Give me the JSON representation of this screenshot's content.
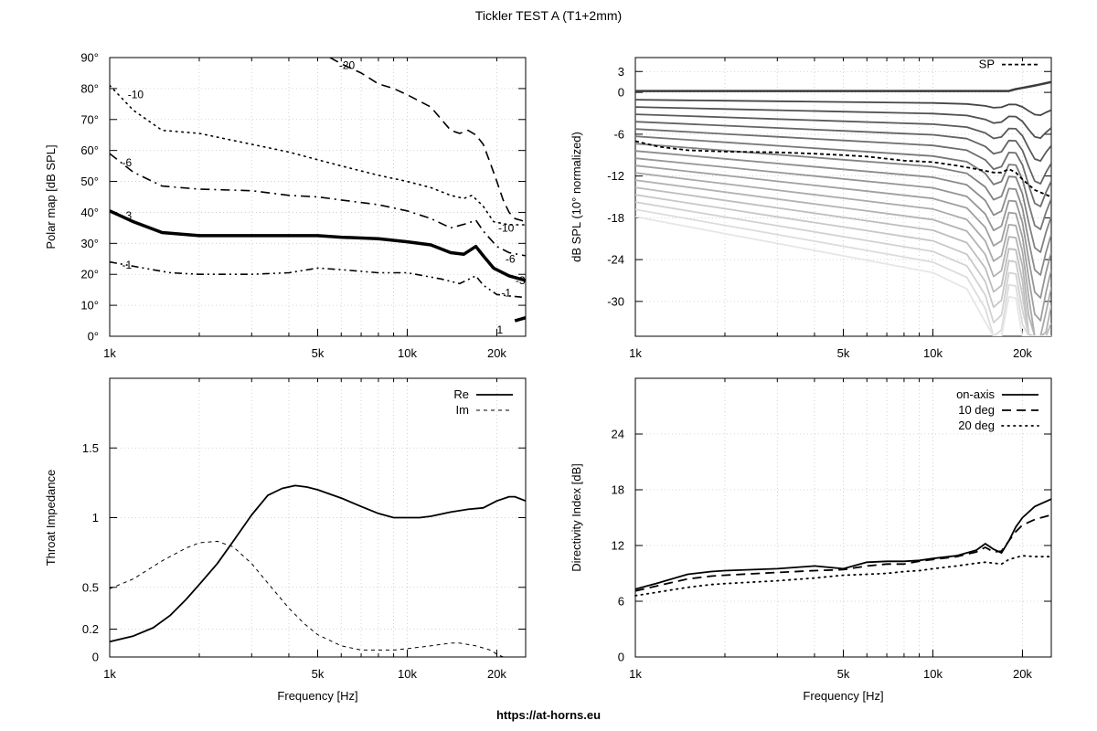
{
  "title": "Tickler TEST A (T1+2mm)",
  "footer_url": "https://at-horns.eu",
  "chart_data": [
    {
      "type": "line",
      "id": "polar",
      "xlabel": "",
      "ylabel": "Polar map [dB SPL]",
      "xscale": "log",
      "xlim": [
        1000,
        25000
      ],
      "ylim": [
        0,
        90
      ],
      "grid": true,
      "xticks": [
        {
          "v": 1000,
          "t": "1k"
        },
        {
          "v": 5000,
          "t": "5k"
        },
        {
          "v": 10000,
          "t": "10k"
        },
        {
          "v": 20000,
          "t": "20k"
        }
      ],
      "yticks": [
        {
          "v": 0,
          "t": "0°"
        },
        {
          "v": 10,
          "t": "10°"
        },
        {
          "v": 20,
          "t": "20°"
        },
        {
          "v": 30,
          "t": "30°"
        },
        {
          "v": 40,
          "t": "40°"
        },
        {
          "v": 50,
          "t": "50°"
        },
        {
          "v": 60,
          "t": "60°"
        },
        {
          "v": 70,
          "t": "70°"
        },
        {
          "v": 80,
          "t": "80°"
        },
        {
          "v": 90,
          "t": "90°"
        }
      ],
      "series": [
        {
          "name": "-1",
          "style": "dashdotdot",
          "width": 1.6,
          "label_x": 1100,
          "label_y": 23,
          "x": [
            1000,
            1300,
            1600,
            2000,
            3000,
            4000,
            5000,
            6000,
            8000,
            10000,
            13000,
            15000,
            17000,
            18000,
            20000,
            22000,
            25000
          ],
          "y": [
            24,
            22,
            20.5,
            20,
            20,
            20.5,
            22,
            21.5,
            20.5,
            20.5,
            18.5,
            17,
            19.5,
            16.5,
            13.5,
            13,
            12.5
          ]
        },
        {
          "name": "-3",
          "style": "solid",
          "width": 3.5,
          "label_x": 1100,
          "label_y": 39,
          "x": [
            1000,
            1200,
            1500,
            2000,
            3000,
            4000,
            5000,
            6000,
            8000,
            10000,
            12000,
            14000,
            15500,
            17000,
            18000,
            19500,
            22000,
            25000
          ],
          "y": [
            40.5,
            37,
            33.5,
            32.5,
            32.5,
            32.5,
            32.5,
            32,
            31.5,
            30.5,
            29.5,
            27,
            26.5,
            29,
            26,
            22,
            19.5,
            18
          ]
        },
        {
          "name": "-6",
          "style": "dashdot",
          "width": 1.6,
          "label_x": 1100,
          "label_y": 56,
          "x": [
            1000,
            1200,
            1500,
            2000,
            3000,
            4000,
            5000,
            6000,
            8000,
            10000,
            12000,
            14000,
            16000,
            17000,
            18000,
            20000,
            22000,
            25000
          ],
          "y": [
            59,
            53,
            48.5,
            47.5,
            47,
            45.5,
            45,
            44,
            42.5,
            40.5,
            38,
            35,
            36.5,
            37.5,
            34,
            29,
            27,
            26
          ]
        },
        {
          "name": "-10",
          "style": "dotted",
          "width": 1.6,
          "label_x": 1150,
          "label_y": 78,
          "x": [
            1000,
            1200,
            1500,
            2000,
            3000,
            4000,
            5000,
            6000,
            8000,
            10000,
            12000,
            14000,
            15500,
            16500,
            18000,
            19500,
            22000,
            25000
          ],
          "y": [
            81,
            73,
            66.5,
            65.5,
            62,
            59.5,
            57,
            55,
            52,
            50,
            48,
            45.5,
            44.5,
            45.5,
            42,
            37,
            36,
            36
          ]
        },
        {
          "name": "-20",
          "style": "longdash",
          "width": 1.6,
          "label_x": 5900,
          "label_y": 87.5,
          "x": [
            5500,
            6000,
            7000,
            8000,
            9000,
            10000,
            12000,
            14000,
            15000,
            16000,
            17000,
            18000,
            19000,
            20000,
            21000,
            22000,
            23000,
            25000
          ],
          "y": [
            91,
            88,
            85,
            81.5,
            80,
            78,
            74,
            66.5,
            65.5,
            66.5,
            65,
            62,
            56,
            50,
            44,
            40,
            38,
            37
          ]
        },
        {
          "name": "1",
          "style": "solid",
          "width": 3.5,
          "label_x": 20000,
          "label_y": 2,
          "x": [
            23000,
            25000
          ],
          "y": [
            5,
            6
          ]
        }
      ],
      "inline_labels": [
        {
          "text": "-10",
          "x": 21500,
          "y": 35
        },
        {
          "text": "-6",
          "x": 22200,
          "y": 25
        },
        {
          "text": "-1",
          "x": 21500,
          "y": 14
        },
        {
          "text": "-3",
          "x": 24000,
          "y": 18
        }
      ]
    },
    {
      "type": "line",
      "id": "spl",
      "xlabel": "",
      "ylabel": "dB SPL (10° normalized)",
      "xscale": "log",
      "xlim": [
        1000,
        25000
      ],
      "ylim": [
        -35,
        5
      ],
      "grid": true,
      "xticks": [
        {
          "v": 1000,
          "t": "1k"
        },
        {
          "v": 5000,
          "t": "5k"
        },
        {
          "v": 10000,
          "t": "10k"
        },
        {
          "v": 20000,
          "t": "20k"
        }
      ],
      "yticks": [
        {
          "v": -30,
          "t": "-30"
        },
        {
          "v": -24,
          "t": "-24"
        },
        {
          "v": -18,
          "t": "-18"
        },
        {
          "v": -12,
          "t": "-12"
        },
        {
          "v": -6,
          "t": "-6"
        },
        {
          "v": 0,
          "t": "0"
        },
        {
          "v": 3,
          "t": "3"
        }
      ],
      "legend": "top-right",
      "legend_entries": [
        "SP"
      ],
      "sp_x": [
        1000,
        1200,
        1500,
        2000,
        3000,
        4000,
        5000,
        6000,
        8000,
        10000,
        12000,
        14000,
        16000,
        17000,
        18000,
        19000,
        20000,
        22000,
        25000
      ],
      "sp_y": [
        -7,
        -7.8,
        -8.3,
        -8.5,
        -8.6,
        -8.8,
        -9,
        -9.2,
        -9.8,
        -10,
        -10.5,
        -11,
        -11.5,
        -11.5,
        -11,
        -11.5,
        -12.5,
        -14,
        -15
      ],
      "sp_legend_y": 4,
      "fan_count": 18,
      "fan_base_x": [
        1000,
        1500,
        2000,
        3000,
        5000,
        8000,
        10000,
        13000,
        15000,
        16000,
        17000,
        18000,
        19000,
        20000,
        21000,
        22000,
        23000,
        24000,
        25000
      ],
      "fan_dip": [
        0,
        0,
        0,
        0,
        0,
        0,
        0,
        0.5,
        2,
        3.5,
        3,
        0.5,
        0.5,
        2.5,
        6,
        9,
        9.5,
        7,
        5
      ],
      "fan_tilt_start": [
        1.0,
        0.7,
        0.55,
        0.45,
        0.3
      ],
      "fan_gain": 1.0
    },
    {
      "type": "line",
      "id": "impedance",
      "xlabel": "Frequency [Hz]",
      "ylabel": "Throat Impedance",
      "xscale": "log",
      "xlim": [
        1000,
        25000
      ],
      "ylim": [
        0,
        2
      ],
      "grid": true,
      "xticks": [
        {
          "v": 1000,
          "t": "1k"
        },
        {
          "v": 5000,
          "t": "5k"
        },
        {
          "v": 10000,
          "t": "10k"
        },
        {
          "v": 20000,
          "t": "20k"
        }
      ],
      "yticks": [
        {
          "v": 0,
          "t": "0"
        },
        {
          "v": 0.2,
          "t": "0.2"
        },
        {
          "v": 0.5,
          "t": "0.5"
        },
        {
          "v": 1,
          "t": "1"
        },
        {
          "v": 1.5,
          "t": "1.5"
        }
      ],
      "legend": "top-right",
      "series": [
        {
          "name": "Re",
          "style": "solid",
          "width": 1.8,
          "x": [
            1000,
            1200,
            1400,
            1600,
            1800,
            2000,
            2300,
            2600,
            3000,
            3400,
            3800,
            4200,
            4600,
            5000,
            6000,
            7000,
            8000,
            9000,
            10000,
            11000,
            12000,
            14000,
            16000,
            18000,
            20000,
            22000,
            23000,
            25000
          ],
          "y": [
            0.11,
            0.15,
            0.21,
            0.3,
            0.41,
            0.52,
            0.67,
            0.83,
            1.02,
            1.16,
            1.21,
            1.23,
            1.22,
            1.2,
            1.14,
            1.08,
            1.03,
            1.0,
            1.0,
            1.0,
            1.01,
            1.04,
            1.06,
            1.07,
            1.12,
            1.15,
            1.15,
            1.12
          ]
        },
        {
          "name": "Im",
          "style": "dashed",
          "width": 1.0,
          "x": [
            1000,
            1200,
            1500,
            1800,
            2000,
            2300,
            2600,
            3000,
            3400,
            4000,
            4500,
            5000,
            6000,
            7000,
            8000,
            9000,
            10000,
            12000,
            14000,
            15000,
            17000,
            19000,
            20000,
            21000
          ],
          "y": [
            0.49,
            0.56,
            0.69,
            0.78,
            0.82,
            0.83,
            0.79,
            0.67,
            0.53,
            0.35,
            0.24,
            0.16,
            0.08,
            0.05,
            0.05,
            0.05,
            0.06,
            0.08,
            0.1,
            0.1,
            0.08,
            0.05,
            0.02,
            0
          ]
        }
      ]
    },
    {
      "type": "line",
      "id": "di",
      "xlabel": "Frequency [Hz]",
      "ylabel": "Directivity Index [dB]",
      "xscale": "log",
      "xlim": [
        1000,
        25000
      ],
      "ylim": [
        0,
        30
      ],
      "grid": true,
      "xticks": [
        {
          "v": 1000,
          "t": "1k"
        },
        {
          "v": 5000,
          "t": "5k"
        },
        {
          "v": 10000,
          "t": "10k"
        },
        {
          "v": 20000,
          "t": "20k"
        }
      ],
      "yticks": [
        {
          "v": 0,
          "t": "0"
        },
        {
          "v": 6,
          "t": "6"
        },
        {
          "v": 12,
          "t": "12"
        },
        {
          "v": 18,
          "t": "18"
        },
        {
          "v": 24,
          "t": "24"
        }
      ],
      "legend": "top-right",
      "series": [
        {
          "name": "on-axis",
          "style": "solid",
          "width": 1.8,
          "x": [
            1000,
            1200,
            1500,
            1800,
            2000,
            3000,
            4000,
            5000,
            6000,
            7000,
            8000,
            9000,
            10000,
            12000,
            14000,
            15000,
            16000,
            17000,
            18000,
            19000,
            20000,
            22000,
            25000
          ],
          "y": [
            7.3,
            8.0,
            8.9,
            9.2,
            9.3,
            9.5,
            9.8,
            9.5,
            10.2,
            10.3,
            10.3,
            10.4,
            10.6,
            10.9,
            11.5,
            12.2,
            11.6,
            11.2,
            12.5,
            14,
            15,
            16.2,
            17
          ]
        },
        {
          "name": "10 deg",
          "style": "longdash",
          "width": 1.8,
          "x": [
            1000,
            1200,
            1500,
            1800,
            2000,
            3000,
            4000,
            5000,
            6000,
            7000,
            8000,
            9000,
            10000,
            12000,
            14000,
            15000,
            16000,
            17000,
            18000,
            19000,
            20000,
            22000,
            25000
          ],
          "y": [
            7.1,
            7.7,
            8.4,
            8.7,
            8.8,
            9.1,
            9.3,
            9.4,
            9.8,
            10.0,
            10.0,
            10.3,
            10.5,
            10.8,
            11.3,
            11.8,
            11.3,
            11.4,
            12.5,
            13.5,
            14.2,
            14.8,
            15.3
          ]
        },
        {
          "name": "20 deg",
          "style": "dotted",
          "width": 1.8,
          "x": [
            1000,
            1200,
            1500,
            1800,
            2000,
            3000,
            4000,
            5000,
            6000,
            7000,
            8000,
            9000,
            10000,
            12000,
            14000,
            15000,
            16000,
            17000,
            18000,
            20000,
            22000,
            25000
          ],
          "y": [
            6.6,
            7.0,
            7.5,
            7.8,
            7.9,
            8.2,
            8.5,
            8.8,
            8.9,
            9.0,
            9.2,
            9.3,
            9.5,
            9.8,
            10.1,
            10.2,
            10.1,
            10.0,
            10.5,
            10.9,
            10.8,
            10.8
          ]
        }
      ]
    }
  ]
}
